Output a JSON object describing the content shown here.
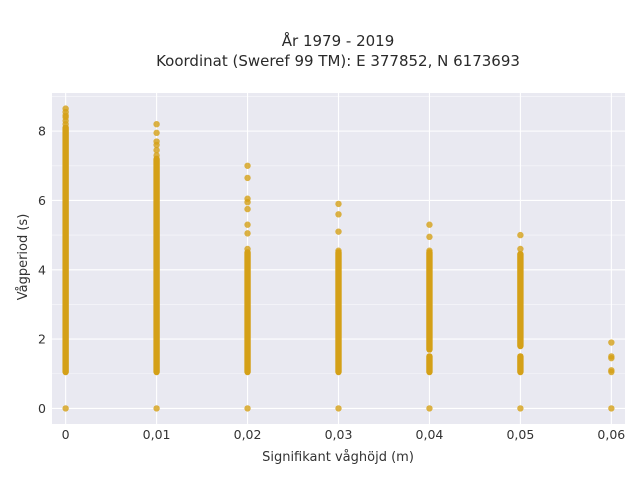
{
  "chart_data": {
    "type": "scatter",
    "title": "År 1979 - 2019",
    "subtitle": "Koordinat (Sweref 99 TM): E 377852, N 6173693",
    "xlabel": "Signifikant våghöjd (m)",
    "ylabel": "Vågperiod (s)",
    "x_ticks": [
      "0",
      "0,01",
      "0,02",
      "0,03",
      "0,04",
      "0,05",
      "0,06"
    ],
    "y_ticks": [
      "0",
      "2",
      "4",
      "6",
      "8"
    ],
    "xlim": [
      -0.0015,
      0.0615
    ],
    "ylim": [
      -0.45,
      9.1
    ],
    "grid": true,
    "background": "#e9e9f1",
    "gridline_color": "#ffffff",
    "marker_color": "#d4a017",
    "series": [
      {
        "x": 0.0,
        "dense_ranges": [
          [
            1.05,
            8.1
          ]
        ],
        "points": [
          0,
          8.2,
          8.3,
          8.4,
          8.45,
          8.55,
          8.65
        ]
      },
      {
        "x": 0.01,
        "dense_ranges": [
          [
            1.05,
            7.2
          ]
        ],
        "points": [
          0,
          7.3,
          7.45,
          7.6,
          7.7,
          7.95,
          8.2
        ]
      },
      {
        "x": 0.02,
        "dense_ranges": [
          [
            1.05,
            4.5
          ]
        ],
        "points": [
          0,
          4.6,
          5.05,
          5.3,
          5.75,
          5.95,
          6.05,
          6.65,
          7.0
        ]
      },
      {
        "x": 0.03,
        "dense_ranges": [
          [
            1.05,
            4.5
          ]
        ],
        "points": [
          0,
          4.55,
          5.1,
          5.6,
          5.9
        ]
      },
      {
        "x": 0.04,
        "dense_ranges": [
          [
            1.05,
            1.5
          ],
          [
            1.7,
            4.5
          ]
        ],
        "points": [
          0,
          4.55,
          4.95,
          5.3
        ]
      },
      {
        "x": 0.05,
        "dense_ranges": [
          [
            1.05,
            1.5
          ],
          [
            1.8,
            4.45
          ]
        ],
        "points": [
          0,
          4.6,
          5.0
        ]
      },
      {
        "x": 0.06,
        "dense_ranges": [],
        "points": [
          0,
          1.05,
          1.1,
          1.45,
          1.5,
          1.9
        ]
      }
    ]
  }
}
